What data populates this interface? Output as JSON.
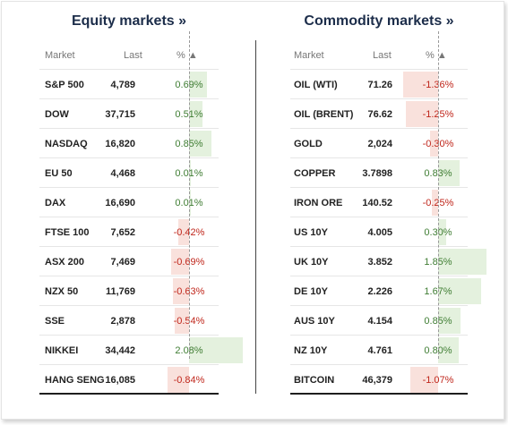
{
  "equity": {
    "title": "Equity markets »",
    "headers": {
      "market": "Market",
      "last": "Last",
      "pct": "% ▲"
    },
    "rows": [
      {
        "name": "S&P 500",
        "last": "4,789",
        "pct": "0.69%",
        "value": 0.69
      },
      {
        "name": "DOW",
        "last": "37,715",
        "pct": "0.51%",
        "value": 0.51
      },
      {
        "name": "NASDAQ",
        "last": "16,820",
        "pct": "0.85%",
        "value": 0.85
      },
      {
        "name": "EU 50",
        "last": "4,468",
        "pct": "0.01%",
        "value": 0.01
      },
      {
        "name": "DAX",
        "last": "16,690",
        "pct": "0.01%",
        "value": 0.01
      },
      {
        "name": "FTSE 100",
        "last": "7,652",
        "pct": "-0.42%",
        "value": -0.42
      },
      {
        "name": "ASX 200",
        "last": "7,469",
        "pct": "-0.69%",
        "value": -0.69
      },
      {
        "name": "NZX 50",
        "last": "11,769",
        "pct": "-0.63%",
        "value": -0.63
      },
      {
        "name": "SSE",
        "last": "2,878",
        "pct": "-0.54%",
        "value": -0.54
      },
      {
        "name": "NIKKEI",
        "last": "34,442",
        "pct": "2.08%",
        "value": 2.08
      },
      {
        "name": "HANG SENG",
        "last": "16,085",
        "pct": "-0.84%",
        "value": -0.84
      }
    ]
  },
  "commodity": {
    "title": "Commodity markets »",
    "headers": {
      "market": "Market",
      "last": "Last",
      "pct": "% ▲"
    },
    "rows": [
      {
        "name": "OIL (WTI)",
        "last": "71.26",
        "pct": "-1.36%",
        "value": -1.36
      },
      {
        "name": "OIL (BRENT)",
        "last": "76.62",
        "pct": "-1.25%",
        "value": -1.25
      },
      {
        "name": "GOLD",
        "last": "2,024",
        "pct": "-0.30%",
        "value": -0.3
      },
      {
        "name": "COPPER",
        "last": "3.7898",
        "pct": "0.83%",
        "value": 0.83
      },
      {
        "name": "IRON ORE",
        "last": "140.52",
        "pct": "-0.25%",
        "value": -0.25
      },
      {
        "name": "US 10Y",
        "last": "4.005",
        "pct": "0.30%",
        "value": 0.3
      },
      {
        "name": "UK 10Y",
        "last": "3.852",
        "pct": "1.85%",
        "value": 1.85
      },
      {
        "name": "DE 10Y",
        "last": "2.226",
        "pct": "1.67%",
        "value": 1.67
      },
      {
        "name": "AUS 10Y",
        "last": "4.154",
        "pct": "0.85%",
        "value": 0.85
      },
      {
        "name": "NZ 10Y",
        "last": "4.761",
        "pct": "0.80%",
        "value": 0.8
      },
      {
        "name": "BITCOIN",
        "last": "46,379",
        "pct": "-1.07%",
        "value": -1.07
      }
    ]
  },
  "colors": {
    "positive_text": "#3f7d33",
    "negative_text": "#c0271c",
    "positive_bar": "#e4f1de",
    "negative_bar": "#f9e1dc",
    "title": "#1c2d4a"
  }
}
